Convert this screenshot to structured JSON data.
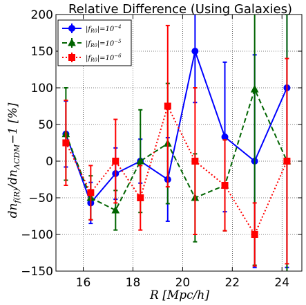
{
  "chart_data": {
    "type": "line",
    "title": "Relative Difference (Using Galaxies)",
    "xlabel": "R [Mpc/h]",
    "ylabel": "dn_f(R)/dn_ΛCDM−1 [%]",
    "xlim": [
      14.9,
      24.8
    ],
    "ylim": [
      -150,
      200
    ],
    "xticks": [
      16,
      18,
      20,
      22,
      24
    ],
    "yticks": [
      -150,
      -100,
      -50,
      0,
      50,
      100,
      150,
      200
    ],
    "grid": true,
    "legend_position": "top-left",
    "series": [
      {
        "name": "|f_R0|=10^-4",
        "color": "#0000ff",
        "linestyle": "solid",
        "marker": "circle",
        "x": [
          15.3,
          16.3,
          17.3,
          18.3,
          19.4,
          20.5,
          21.7,
          22.9,
          24.2
        ],
        "y": [
          37,
          -57,
          -17,
          0,
          -25,
          150,
          33,
          0,
          100
        ],
        "err": [
          45,
          28,
          35,
          30,
          57,
          70,
          102,
          145,
          245
        ]
      },
      {
        "name": "|f_R0|=10^-5",
        "color": "#006400",
        "linestyle": "dashed",
        "marker": "triangle",
        "x": [
          15.3,
          16.3,
          17.3,
          18.3,
          19.4,
          20.5,
          21.7,
          22.9,
          24.2
        ],
        "y": [
          37,
          -50,
          -67,
          0,
          24,
          -50,
          -33,
          98,
          0
        ],
        "err": [
          63,
          30,
          27,
          70,
          82,
          60,
          62,
          240,
          200
        ]
      },
      {
        "name": "|f_R0|=10^-6",
        "color": "#ff0000",
        "linestyle": "dotted",
        "marker": "square",
        "x": [
          15.3,
          16.3,
          17.3,
          18.3,
          19.4,
          20.5,
          21.7,
          22.9,
          24.2
        ],
        "y": [
          25,
          -43,
          0,
          -50,
          75,
          0,
          -33,
          -100,
          0
        ],
        "err": [
          58,
          37,
          57,
          44,
          110,
          100,
          62,
          43,
          140
        ]
      }
    ]
  },
  "legend": {
    "entries": [
      {
        "prefix": "|f",
        "sub": "R0",
        "mid": "|=10",
        "sup": "−4"
      },
      {
        "prefix": "|f",
        "sub": "R0",
        "mid": "|=10",
        "sup": "−5"
      },
      {
        "prefix": "|f",
        "sub": "R0",
        "mid": "|=10",
        "sup": "−6"
      }
    ]
  },
  "labels": {
    "xlabel_main": "R [Mpc/h]",
    "ylabel_main": "dn",
    "ylabel_sub1": "f(R)",
    "ylabel_mid": "/dn",
    "ylabel_sub2": "ΛCDM",
    "ylabel_tail": "−1 [%]"
  }
}
